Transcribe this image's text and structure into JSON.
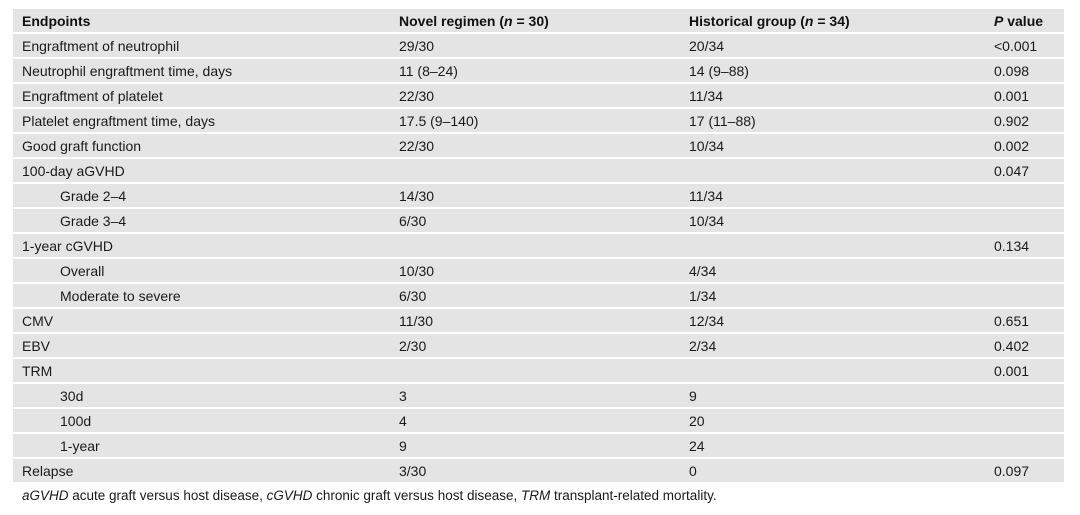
{
  "page": {
    "background_color": "#ffffff",
    "row_background_color": "#e4e4e4",
    "text_color": "#1a1a1a"
  },
  "table": {
    "columns": [
      {
        "key": "endpoints",
        "pre": "Endpoints",
        "italic": "",
        "post": ""
      },
      {
        "key": "novel-regimen",
        "pre": "Novel regimen (",
        "italic": "n",
        "post": " = 30)"
      },
      {
        "key": "historical-group",
        "pre": "Historical group (",
        "italic": "n",
        "post": " = 34)"
      },
      {
        "key": "p-value",
        "pre": "",
        "italic": "P",
        "post": " value"
      }
    ],
    "rows": [
      {
        "label": "Engraftment of neutrophil",
        "indent": false,
        "novel": "29/30",
        "historical": "20/34",
        "p": "<0.001"
      },
      {
        "label": "Neutrophil engraftment time, days",
        "indent": false,
        "novel": "11 (8–24)",
        "historical": "14 (9–88)",
        "p": "0.098"
      },
      {
        "label": "Engraftment of platelet",
        "indent": false,
        "novel": "22/30",
        "historical": "11/34",
        "p": "0.001"
      },
      {
        "label": "Platelet engraftment time, days",
        "indent": false,
        "novel": "17.5 (9–140)",
        "historical": "17 (11–88)",
        "p": "0.902"
      },
      {
        "label": "Good graft function",
        "indent": false,
        "novel": "22/30",
        "historical": "10/34",
        "p": "0.002"
      },
      {
        "label": "100-day aGVHD",
        "indent": false,
        "novel": "",
        "historical": "",
        "p": "0.047"
      },
      {
        "label": "Grade 2–4",
        "indent": true,
        "novel": "14/30",
        "historical": "11/34",
        "p": ""
      },
      {
        "label": "Grade 3–4",
        "indent": true,
        "novel": "6/30",
        "historical": "10/34",
        "p": ""
      },
      {
        "label": "1-year cGVHD",
        "indent": false,
        "novel": "",
        "historical": "",
        "p": "0.134"
      },
      {
        "label": "Overall",
        "indent": true,
        "novel": "10/30",
        "historical": "4/34",
        "p": ""
      },
      {
        "label": "Moderate to severe",
        "indent": true,
        "novel": "6/30",
        "historical": "1/34",
        "p": ""
      },
      {
        "label": "CMV",
        "indent": false,
        "novel": "11/30",
        "historical": "12/34",
        "p": "0.651"
      },
      {
        "label": "EBV",
        "indent": false,
        "novel": "2/30",
        "historical": "2/34",
        "p": "0.402"
      },
      {
        "label": "TRM",
        "indent": false,
        "novel": "",
        "historical": "",
        "p": "0.001"
      },
      {
        "label": "30d",
        "indent": true,
        "novel": "3",
        "historical": "9",
        "p": ""
      },
      {
        "label": "100d",
        "indent": true,
        "novel": "4",
        "historical": "20",
        "p": ""
      },
      {
        "label": "1-year",
        "indent": true,
        "novel": "9",
        "historical": "24",
        "p": ""
      },
      {
        "label": "Relapse",
        "indent": false,
        "novel": "3/30",
        "historical": "0",
        "p": "0.097"
      }
    ]
  },
  "footnote": {
    "parts": [
      {
        "text": "aGVHD",
        "italic": true
      },
      {
        "text": " acute graft versus host disease, ",
        "italic": false
      },
      {
        "text": "cGVHD",
        "italic": true
      },
      {
        "text": " chronic graft versus host disease, ",
        "italic": false
      },
      {
        "text": "TRM",
        "italic": true
      },
      {
        "text": " transplant-related mortality.",
        "italic": false
      }
    ]
  }
}
